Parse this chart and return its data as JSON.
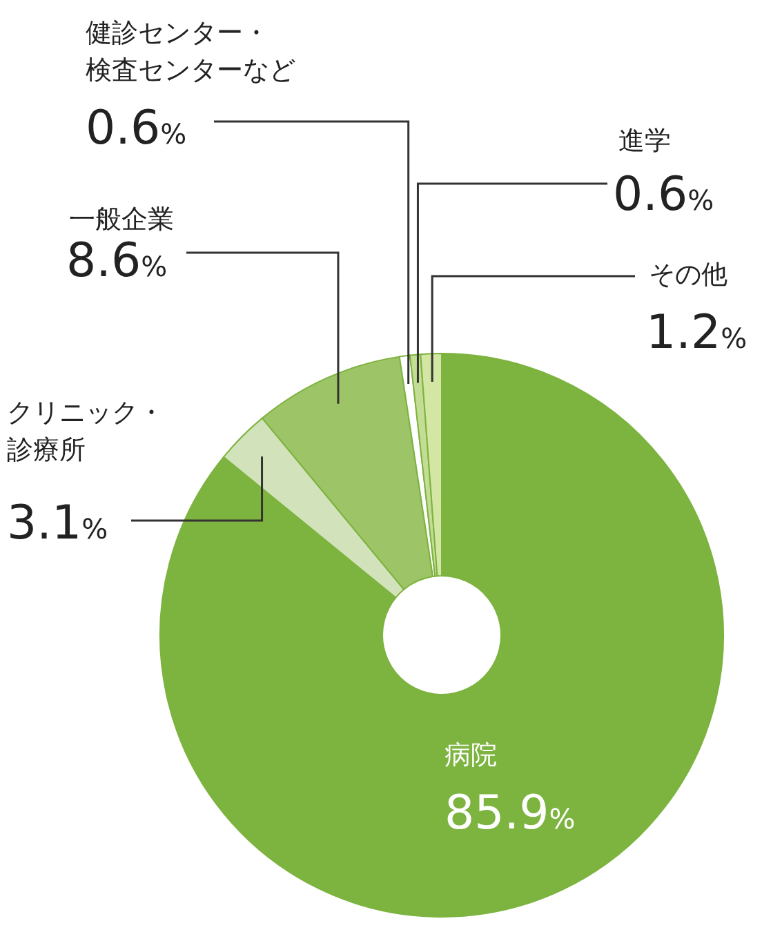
{
  "chart_data": {
    "type": "donut",
    "categories": [
      "病院",
      "クリニック・診療所",
      "一般企業",
      "健診センター・検査センターなど",
      "進学",
      "その他"
    ],
    "values": [
      85.9,
      3.1,
      8.6,
      0.6,
      0.6,
      1.2
    ],
    "colors": [
      "#7db33f",
      "#d2e2bb",
      "#9dc466",
      "#ffffff",
      "#c3dd94",
      "#d3e6a3"
    ],
    "value_labels": [
      "85.9%",
      "3.1%",
      "8.6%",
      "0.6%",
      "0.6%",
      "1.2%"
    ]
  }
}
